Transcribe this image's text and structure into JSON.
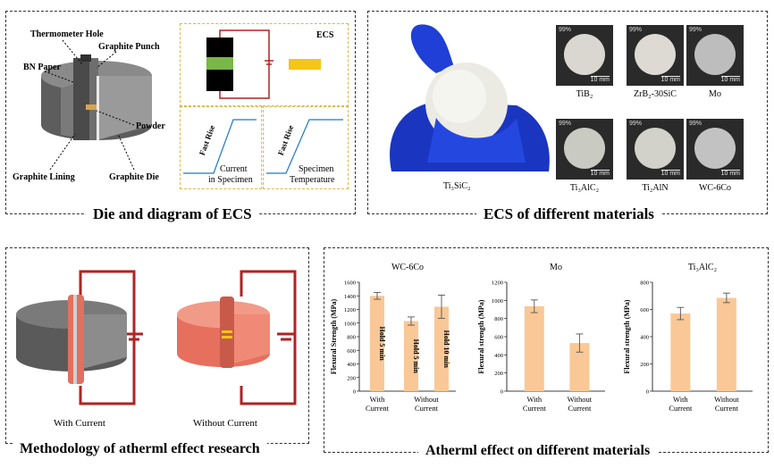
{
  "panels": {
    "p1_title": "Die and diagram of ECS",
    "p2_title": "ECS of different materials",
    "p3_title": "Methodology of atherml effect research",
    "p4_title": "Atherml effect on different materials"
  },
  "die_labels": {
    "thermometer_hole": "Thermometer Hole",
    "graphite_punch": "Graphite Punch",
    "bn_paper": "BN Paper",
    "powder": "Powder",
    "graphite_lining": "Graphite Lining",
    "graphite_die": "Graphite Die"
  },
  "ecs_diagram": {
    "ecs_label": "ECS",
    "fast_rise_1": "Fast Rise",
    "fast_rise_2": "Fast Rise",
    "current_label_l1": "Current",
    "current_label_l2": "in Specimen",
    "temp_label_l1": "Specimen",
    "temp_label_l2": "Temperature"
  },
  "materials": {
    "hand_label": "Ti₃SiC₂",
    "samples": [
      {
        "label": "TiB₂",
        "pct": "99%",
        "scale": "10 mm"
      },
      {
        "label": "ZrB₂-30SiC",
        "pct": "99%",
        "scale": "10 mm"
      },
      {
        "label": "Mo",
        "pct": "99%",
        "scale": "10 mm"
      },
      {
        "label": "Ti₃AlC₂",
        "pct": "99%",
        "scale": "10 mm"
      },
      {
        "label": "Ti₂AlN",
        "pct": "99%",
        "scale": "10 mm"
      },
      {
        "label": "WC-6Co",
        "pct": "99%",
        "scale": "10 mm"
      }
    ]
  },
  "methodology": {
    "with_current": "With Current",
    "without_current": "Without Current"
  },
  "colors": {
    "bar": "#f9c896",
    "circuit": "#b22222",
    "glove": "#1f3fd6",
    "ecs_yellow": "#f5c518",
    "ecs_green": "#7ab648"
  },
  "chart_data": [
    {
      "type": "bar",
      "title": "WC-6Co",
      "ylabel": "Flexural Strength (MPa)",
      "ylim": [
        0,
        1600
      ],
      "yticks": [
        "0",
        "200",
        "400",
        "600",
        "800",
        "1000",
        "1200",
        "1400",
        "1600"
      ],
      "xgroups": [
        {
          "line1": "With",
          "line2": "Current"
        },
        {
          "line1": "Without",
          "line2": "Current"
        }
      ],
      "values": [
        1400,
        1030,
        1240
      ],
      "errors": [
        50,
        60,
        170
      ],
      "bar_labels": [
        "Hold 5 min",
        "Hold 5 min",
        "Hold 10 min"
      ]
    },
    {
      "type": "bar",
      "title": "Mo",
      "ylabel": "Flexural strength (MPa)",
      "ylim": [
        0,
        1200
      ],
      "yticks": [
        "0",
        "200",
        "400",
        "600",
        "800",
        "1000",
        "1200"
      ],
      "xgroups": [
        {
          "line1": "With",
          "line2": "Current"
        },
        {
          "line1": "Without",
          "line2": "Current"
        }
      ],
      "values": [
        935,
        530
      ],
      "errors": [
        70,
        100
      ]
    },
    {
      "type": "bar",
      "title": "Ti₃AlC₂",
      "ylabel": "Flexural strength (MPa)",
      "ylim": [
        0,
        800
      ],
      "yticks": [
        "0",
        "200",
        "400",
        "600",
        "800"
      ],
      "xgroups": [
        {
          "line1": "With",
          "line2": "Current"
        },
        {
          "line1": "Without",
          "line2": "Current"
        }
      ],
      "values": [
        570,
        685
      ],
      "errors": [
        45,
        35
      ]
    }
  ]
}
